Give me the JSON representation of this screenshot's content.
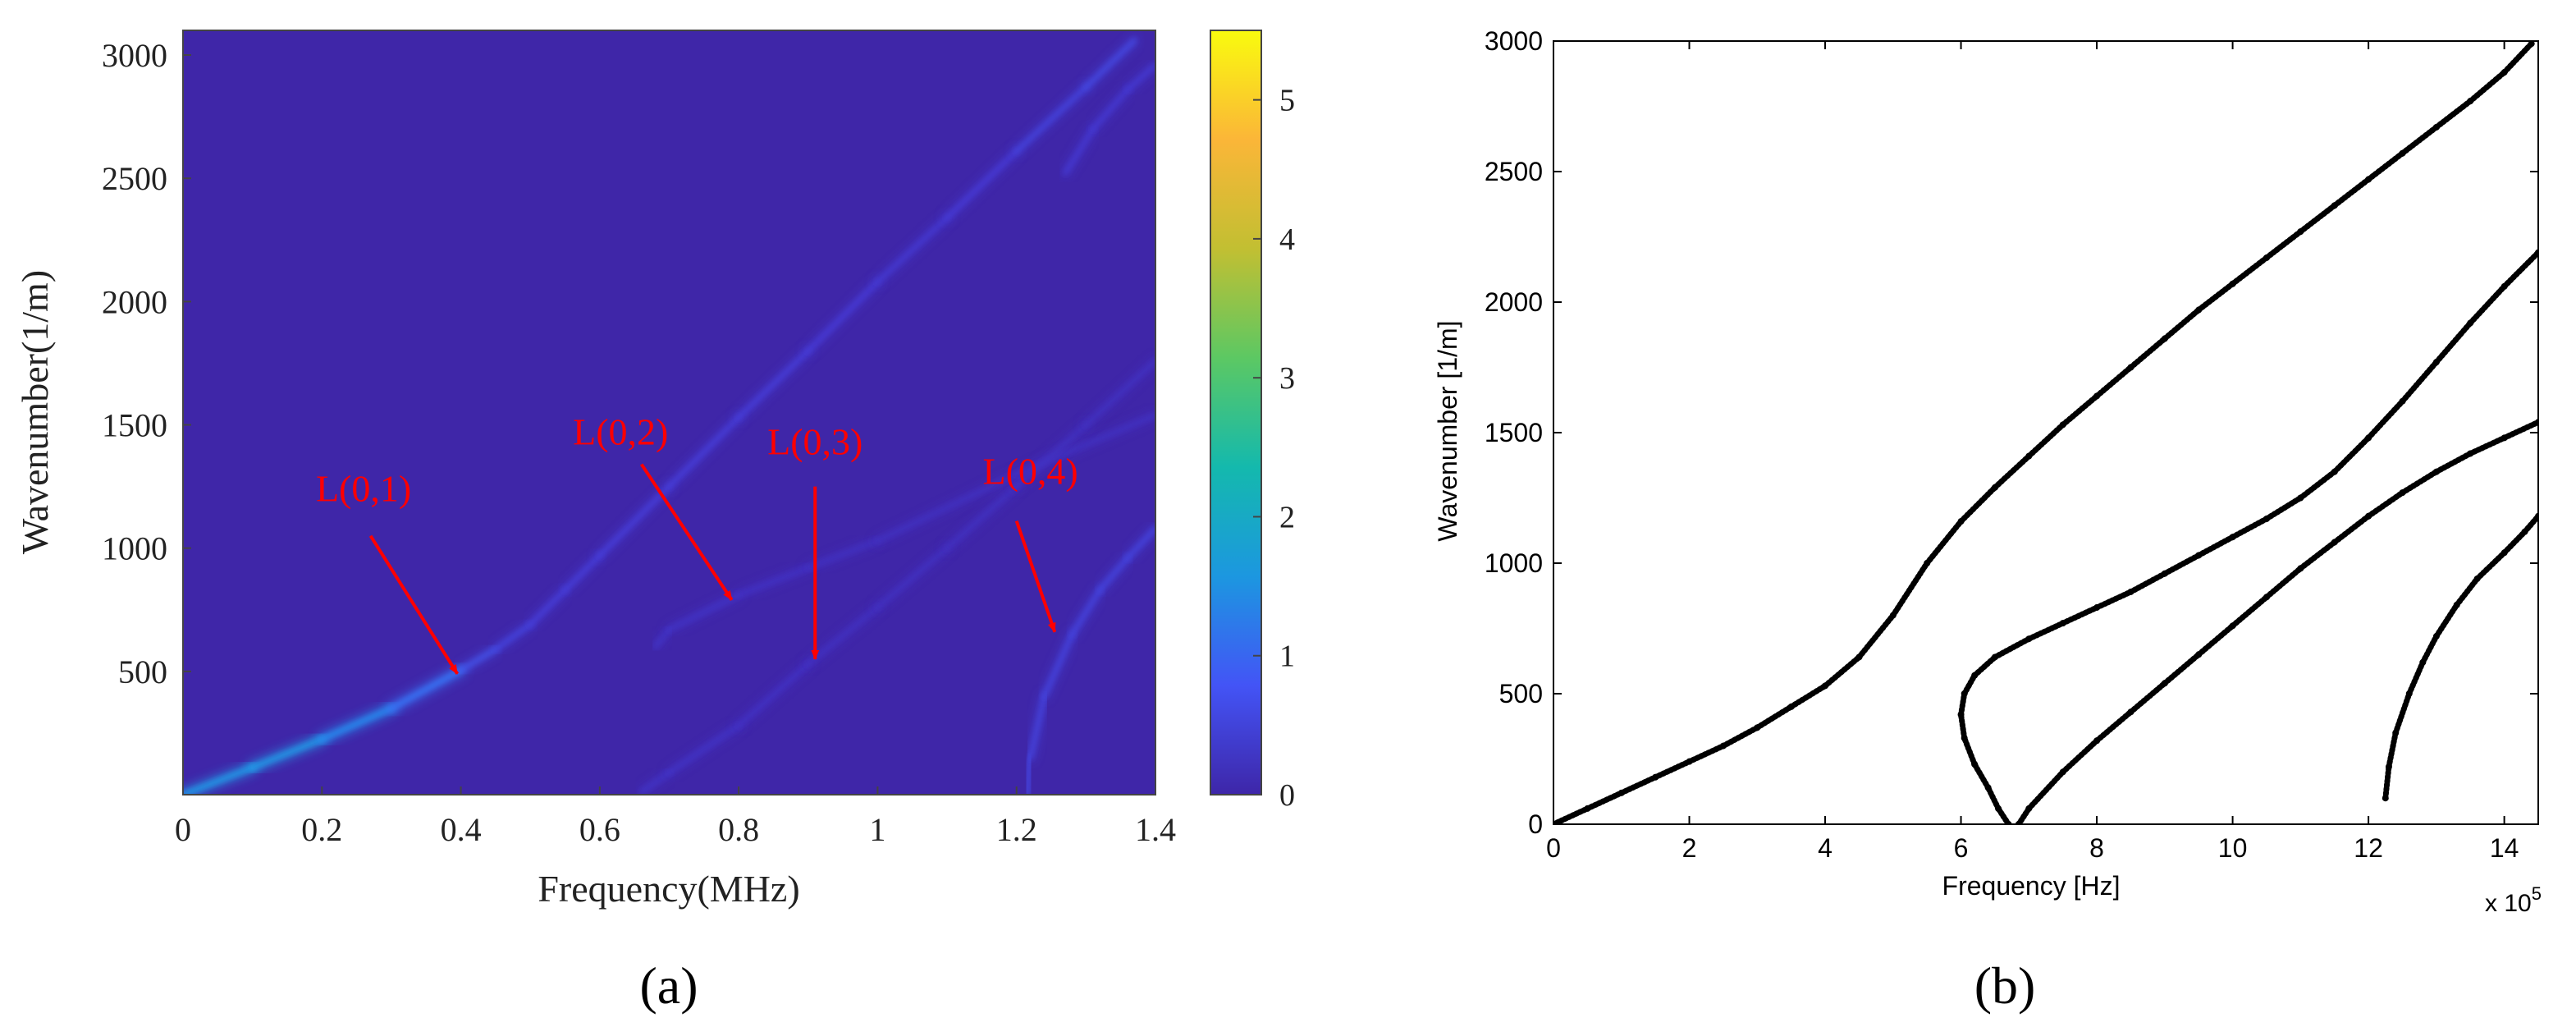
{
  "figure_labels": [
    "(a)",
    "(b)"
  ],
  "chart_data": [
    {
      "type": "heatmap",
      "panel_label": "(a)",
      "xlabel": "Frequency(MHz)",
      "ylabel": "Wavenumber(1/m)",
      "xlim": [
        0,
        1.4
      ],
      "ylim": [
        0,
        3100
      ],
      "x_ticks": [
        "0",
        "0.2",
        "0.4",
        "0.6",
        "0.8",
        "1",
        "1.2",
        "1.4"
      ],
      "x_tick_values": [
        0,
        0.2,
        0.4,
        0.6,
        0.8,
        1.0,
        1.2,
        1.4
      ],
      "y_ticks": [
        "500",
        "1000",
        "1500",
        "2000",
        "2500",
        "3000"
      ],
      "y_tick_values": [
        500,
        1000,
        1500,
        2000,
        2500,
        3000
      ],
      "colorbar": {
        "range": [
          0,
          5.5
        ],
        "ticks": [
          "0",
          "1",
          "2",
          "3",
          "4",
          "5"
        ],
        "tick_values": [
          0,
          1,
          2,
          3,
          4,
          5
        ],
        "colormap": "parula",
        "colors": [
          "#3e26a8",
          "#4354f6",
          "#1c97e0",
          "#14b9ad",
          "#5cc863",
          "#c2bf32",
          "#fbb638",
          "#f9fb0e"
        ]
      },
      "background_color": "#3f26a8",
      "annotation_color": "#ff0000",
      "series": [
        {
          "name": "L(0,1)",
          "x": [
            0.0,
            0.1,
            0.2,
            0.3,
            0.4,
            0.45,
            0.5,
            0.55,
            0.6,
            0.7,
            0.8,
            0.9,
            1.0,
            1.1,
            1.2,
            1.3,
            1.37
          ],
          "y": [
            0,
            110,
            225,
            350,
            505,
            590,
            690,
            830,
            970,
            1250,
            1530,
            1800,
            2080,
            2340,
            2610,
            2870,
            3060
          ],
          "peak_intensity": [
            1.8,
            2.0,
            1.8,
            1.5,
            1.1,
            0.8,
            0.6,
            0.6,
            0.6,
            0.6,
            0.6,
            0.6,
            0.5,
            0.5,
            0.6,
            0.8,
            0.8
          ]
        },
        {
          "name": "L(0,2)",
          "x": [
            0.68,
            0.7,
            0.8,
            0.9,
            1.0,
            1.2,
            1.4
          ],
          "y": [
            600,
            670,
            810,
            920,
            1030,
            1300,
            1540
          ],
          "peak_intensity": [
            0.35,
            0.35,
            0.35,
            0.3,
            0.3,
            0.3,
            0.3
          ]
        },
        {
          "name": "L(0,3)",
          "x": [
            0.66,
            0.7,
            0.8,
            0.9,
            1.0,
            1.1,
            1.2,
            1.3,
            1.4
          ],
          "y": [
            10,
            90,
            280,
            530,
            760,
            1000,
            1250,
            1500,
            1760
          ],
          "peak_intensity": [
            0.35,
            0.35,
            0.35,
            0.3,
            0.3,
            0.3,
            0.3,
            0.3,
            0.3
          ]
        },
        {
          "name": "L(0,4)",
          "x": [
            1.215,
            1.22,
            1.24,
            1.28,
            1.32,
            1.36,
            1.4
          ],
          "y": [
            0,
            150,
            400,
            650,
            830,
            960,
            1080
          ],
          "peak_intensity": [
            0.7,
            0.7,
            0.7,
            0.7,
            0.7,
            0.7,
            0.7
          ]
        },
        {
          "name": "",
          "x": [
            1.27,
            1.31,
            1.36,
            1.4
          ],
          "y": [
            2520,
            2700,
            2860,
            2960
          ],
          "peak_intensity": [
            0.5,
            0.5,
            0.5,
            0.5
          ]
        }
      ],
      "annotations": [
        {
          "text": "L(0,1)",
          "label_at": [
            0.26,
            1190
          ],
          "arrow_from": [
            0.27,
            1050
          ],
          "arrow_to": [
            0.395,
            490
          ]
        },
        {
          "text": "L(0,2)",
          "label_at": [
            0.63,
            1420
          ],
          "arrow_from": [
            0.66,
            1340
          ],
          "arrow_to": [
            0.79,
            790
          ]
        },
        {
          "text": "L(0,3)",
          "label_at": [
            0.91,
            1380
          ],
          "arrow_from": [
            0.91,
            1250
          ],
          "arrow_to": [
            0.91,
            550
          ]
        },
        {
          "text": "L(0,4)",
          "label_at": [
            1.22,
            1260
          ],
          "arrow_from": [
            1.2,
            1110
          ],
          "arrow_to": [
            1.255,
            660
          ]
        }
      ]
    },
    {
      "type": "scatter",
      "panel_label": "(b)",
      "xlabel": "Frequency [Hz]",
      "ylabel": "Wavenumber [1/m]",
      "x_multiplier": "x 10",
      "x_multiplier_exponent": "5",
      "xlim": [
        0,
        14.5
      ],
      "ylim": [
        0,
        3000
      ],
      "x_ticks": [
        "0",
        "2",
        "4",
        "6",
        "8",
        "10",
        "12",
        "14"
      ],
      "x_tick_values": [
        0,
        2,
        4,
        6,
        8,
        10,
        12,
        14
      ],
      "y_ticks": [
        "0",
        "500",
        "1000",
        "1500",
        "2000",
        "2500",
        "3000"
      ],
      "y_tick_values": [
        0,
        500,
        1000,
        1500,
        2000,
        2500,
        3000
      ],
      "grid": false,
      "marker_color": "#000000",
      "series": [
        {
          "x": [
            0.0,
            0.5,
            1.0,
            1.5,
            2.0,
            2.5,
            3.0,
            3.5,
            4.0,
            4.5,
            5.0,
            5.5,
            6.0,
            6.5,
            7.0,
            7.5,
            8.0,
            8.5,
            9.0,
            9.5,
            10.0,
            10.5,
            11.0,
            11.5,
            12.0,
            12.5,
            13.0,
            13.5,
            14.0,
            14.4
          ],
          "y": [
            0,
            60,
            120,
            180,
            240,
            300,
            370,
            450,
            530,
            640,
            800,
            1000,
            1160,
            1290,
            1410,
            1530,
            1640,
            1750,
            1860,
            1970,
            2070,
            2170,
            2270,
            2370,
            2470,
            2570,
            2670,
            2770,
            2880,
            2990
          ]
        },
        {
          "x": [
            6.7,
            6.55,
            6.4,
            6.2,
            6.05,
            6.0,
            6.05,
            6.2,
            6.5,
            7.0,
            7.5,
            8.0,
            8.5,
            9.0,
            9.5,
            10.0,
            10.5,
            11.0,
            11.5,
            12.0,
            12.5,
            13.0,
            13.5,
            14.0,
            14.5
          ],
          "y": [
            0,
            60,
            140,
            230,
            330,
            420,
            500,
            570,
            640,
            710,
            770,
            830,
            890,
            960,
            1030,
            1100,
            1170,
            1250,
            1350,
            1480,
            1620,
            1770,
            1920,
            2060,
            2190
          ]
        },
        {
          "x": [
            6.85,
            7.0,
            7.5,
            8.0,
            8.5,
            9.0,
            9.5,
            10.0,
            10.5,
            11.0,
            11.5,
            12.0,
            12.5,
            13.0,
            13.5,
            14.0,
            14.5
          ],
          "y": [
            0,
            60,
            200,
            320,
            430,
            540,
            650,
            760,
            870,
            980,
            1080,
            1180,
            1270,
            1350,
            1420,
            1480,
            1540
          ]
        },
        {
          "x": [
            12.25,
            12.3,
            12.4,
            12.6,
            12.8,
            13.0,
            13.3,
            13.6,
            14.0,
            14.3,
            14.5
          ],
          "y": [
            100,
            220,
            350,
            500,
            620,
            720,
            840,
            940,
            1040,
            1120,
            1180
          ]
        }
      ]
    }
  ]
}
